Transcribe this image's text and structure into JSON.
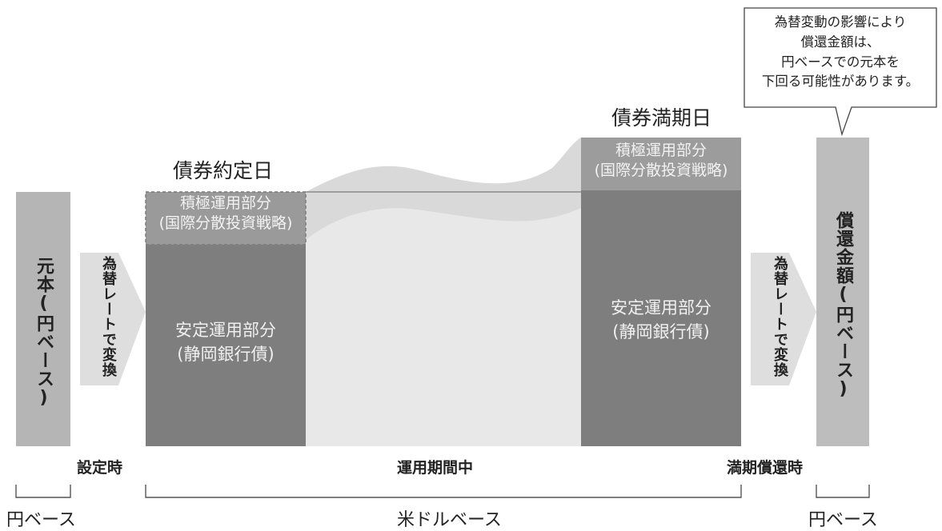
{
  "header": {
    "left_date": "債券約定日",
    "right_date": "債券満期日"
  },
  "callout": {
    "lines": [
      "為替変動の影響により",
      "償還金額は、",
      "円ベースでの元本を",
      "下回る可能性があります。"
    ]
  },
  "columns": {
    "principal": "元本(円ベース)",
    "redemption": "償還金額(円ベース)"
  },
  "conversion": {
    "left": "為替レートで変換",
    "right": "為替レートで変換"
  },
  "blocks": {
    "left_active": [
      "積極運用部分",
      "(国際分散投資戦略)"
    ],
    "left_stable": [
      "安定運用部分",
      "(静岡銀行債)"
    ],
    "right_active": [
      "積極運用部分",
      "(国際分散投資戦略)"
    ],
    "right_stable": [
      "安定運用部分",
      "(静岡銀行債)"
    ]
  },
  "timeline": {
    "setup": "設定時",
    "operation": "運用期間中",
    "maturity": "満期償還時"
  },
  "bases": {
    "left": "円ベース",
    "middle": "米ドルベース",
    "right": "円ベース"
  }
}
